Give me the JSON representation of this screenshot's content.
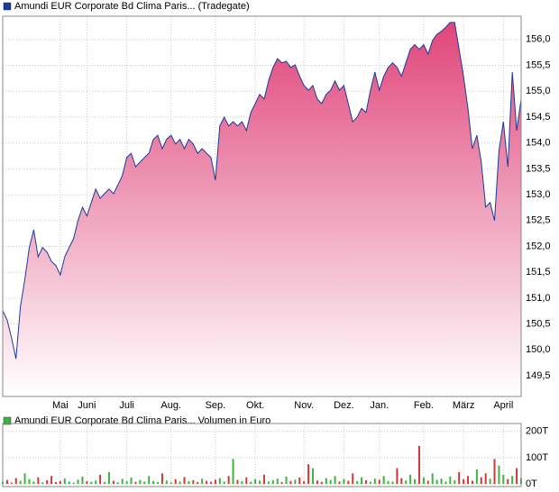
{
  "chart_data": [
    {
      "type": "area",
      "series": [
        {
          "name": "Amundi EUR Corporate Bd Clima Paris... (Tradegate)",
          "color": "#1a3a9c",
          "fill": "#e0457a",
          "values": [
            150.76,
            150.58,
            150.23,
            149.83,
            150.84,
            151.37,
            151.98,
            152.32,
            151.8,
            151.98,
            151.89,
            151.71,
            151.63,
            151.45,
            151.8,
            151.98,
            152.15,
            152.5,
            152.76,
            152.59,
            152.85,
            153.11,
            152.93,
            153.02,
            153.11,
            153.02,
            153.19,
            153.37,
            153.72,
            153.8,
            153.54,
            153.63,
            153.72,
            153.8,
            154.07,
            154.15,
            153.89,
            154.07,
            154.15,
            153.98,
            154.07,
            153.89,
            154.07,
            153.98,
            153.8,
            153.89,
            153.8,
            153.72,
            153.28,
            154.33,
            154.5,
            154.33,
            154.41,
            154.33,
            154.41,
            154.24,
            154.59,
            154.76,
            154.94,
            154.85,
            155.2,
            155.46,
            155.63,
            155.55,
            155.58,
            155.46,
            155.51,
            155.29,
            155.11,
            155.02,
            155.11,
            154.85,
            154.76,
            154.94,
            155.02,
            155.2,
            155.02,
            155.11,
            154.76,
            154.41,
            154.5,
            154.67,
            154.59,
            155.02,
            155.37,
            155.02,
            155.29,
            155.46,
            155.55,
            155.46,
            155.29,
            155.55,
            155.81,
            155.9,
            155.81,
            155.9,
            155.72,
            155.98,
            156.1,
            156.16,
            156.24,
            156.33,
            156.33,
            155.81,
            155.29,
            154.67,
            153.89,
            154.15,
            153.63,
            152.76,
            152.85,
            152.5,
            153.85,
            154.41,
            153.54,
            155.37,
            154.24,
            154.85
          ]
        }
      ],
      "xlim": [
        0,
        117
      ],
      "xticks": [
        {
          "value": 13,
          "label": "Mai"
        },
        {
          "value": 19,
          "label": "Juni"
        },
        {
          "value": 28,
          "label": "Juli"
        },
        {
          "value": 38,
          "label": "Aug."
        },
        {
          "value": 48,
          "label": "Sep."
        },
        {
          "value": 57,
          "label": "Okt."
        },
        {
          "value": 68,
          "label": "Nov."
        },
        {
          "value": 77,
          "label": "Dez."
        },
        {
          "value": 85,
          "label": "Jan."
        },
        {
          "value": 95,
          "label": "Feb."
        },
        {
          "value": 104,
          "label": "März"
        },
        {
          "value": 113,
          "label": "April"
        }
      ],
      "ylim": [
        149.1,
        156.45
      ],
      "yticks": [
        {
          "value": 149.5,
          "label": "149,5"
        },
        {
          "value": 150,
          "label": "150,0"
        },
        {
          "value": 150.5,
          "label": "150,5"
        },
        {
          "value": 151,
          "label": "151,0"
        },
        {
          "value": 151.5,
          "label": "151,5"
        },
        {
          "value": 152,
          "label": "152,0"
        },
        {
          "value": 152.5,
          "label": "152,5"
        },
        {
          "value": 153,
          "label": "153,0"
        },
        {
          "value": 153.5,
          "label": "153,5"
        },
        {
          "value": 154,
          "label": "154,0"
        },
        {
          "value": 154.5,
          "label": "154,5"
        },
        {
          "value": 155,
          "label": "155,0"
        },
        {
          "value": 155.5,
          "label": "155,5"
        },
        {
          "value": 156,
          "label": "156,0"
        }
      ],
      "grid": true
    },
    {
      "type": "bar",
      "series": [
        {
          "name": "Amundi EUR Corporate Bd Clima Paris... Volumen in Euro",
          "color": "#3cb43c",
          "down_color": "#d03838",
          "values": [
            8000,
            15000,
            5000,
            22000,
            12000,
            40000,
            18000,
            9000,
            25000,
            6000,
            14000,
            30000,
            7000,
            11000,
            20000,
            9000,
            5000,
            16000,
            28000,
            10000,
            8000,
            13000,
            35000,
            7000,
            45000,
            12000,
            6000,
            19000,
            10000,
            24000,
            8000,
            15000,
            9000,
            30000,
            11000,
            7000,
            40000,
            13000,
            6000,
            18000,
            9000,
            26000,
            10000,
            14000,
            7000,
            20000,
            12000,
            8000,
            16000,
            22000,
            9000,
            30000,
            95000,
            15000,
            10000,
            25000,
            8000,
            18000,
            12000,
            35000,
            9000,
            14000,
            20000,
            7000,
            28000,
            11000,
            16000,
            24000,
            10000,
            75000,
            60000,
            13000,
            8000,
            22000,
            15000,
            30000,
            9000,
            18000,
            12000,
            40000,
            10000,
            25000,
            14000,
            8000,
            20000,
            16000,
            30000,
            11000,
            9000,
            60000,
            22000,
            13000,
            35000,
            18000,
            145000,
            25000,
            12000,
            40000,
            15000,
            20000,
            9000,
            28000,
            14000,
            45000,
            18000,
            30000,
            12000,
            55000,
            25000,
            40000,
            20000,
            95000,
            70000,
            35000,
            18000,
            30000,
            60000,
            22000
          ]
        }
      ],
      "xlim": [
        0,
        117
      ],
      "ylim": [
        0,
        230000
      ],
      "yticks": [
        {
          "value": 0,
          "label": "0T"
        },
        {
          "value": 100000,
          "label": "100T"
        },
        {
          "value": 200000,
          "label": "200T"
        }
      ],
      "grid": true
    }
  ]
}
